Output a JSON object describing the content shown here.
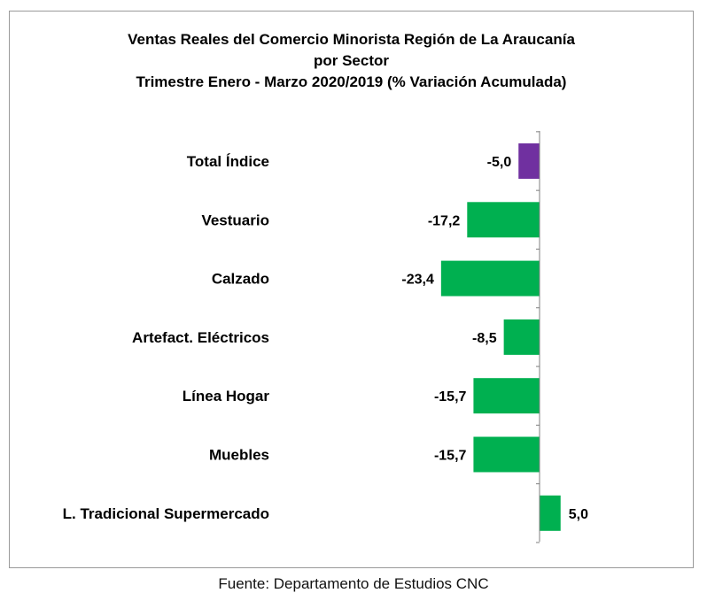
{
  "title_lines": [
    "Ventas Reales del Comercio Minorista Región de La Araucanía",
    "por Sector",
    "Trimestre Enero - Marzo 2020/2019 (% Variación Acumulada)"
  ],
  "source": "Fuente: Departamento de Estudios CNC",
  "chart_data": {
    "type": "bar",
    "orientation": "horizontal",
    "title": "Ventas Reales del Comercio Minorista Región de La Araucanía por Sector Trimestre Enero - Marzo 2020/2019 (% Variación Acumulada)",
    "categories": [
      "Total Índice",
      "Vestuario",
      "Calzado",
      "Artefact. Eléctricos",
      "Línea Hogar",
      "Muebles",
      "L. Tradicional Supermercado"
    ],
    "values": [
      -5.0,
      -17.2,
      -23.4,
      -8.5,
      -15.7,
      -15.7,
      5.0
    ],
    "value_labels": [
      "-5,0",
      "-17,2",
      "-23,4",
      "-8,5",
      "-15,7",
      "-15,7",
      "5,0"
    ],
    "colors": [
      "#7030A0",
      "#00B050",
      "#00B050",
      "#00B050",
      "#00B050",
      "#00B050",
      "#00B050"
    ],
    "grid": false,
    "legend": "none"
  }
}
